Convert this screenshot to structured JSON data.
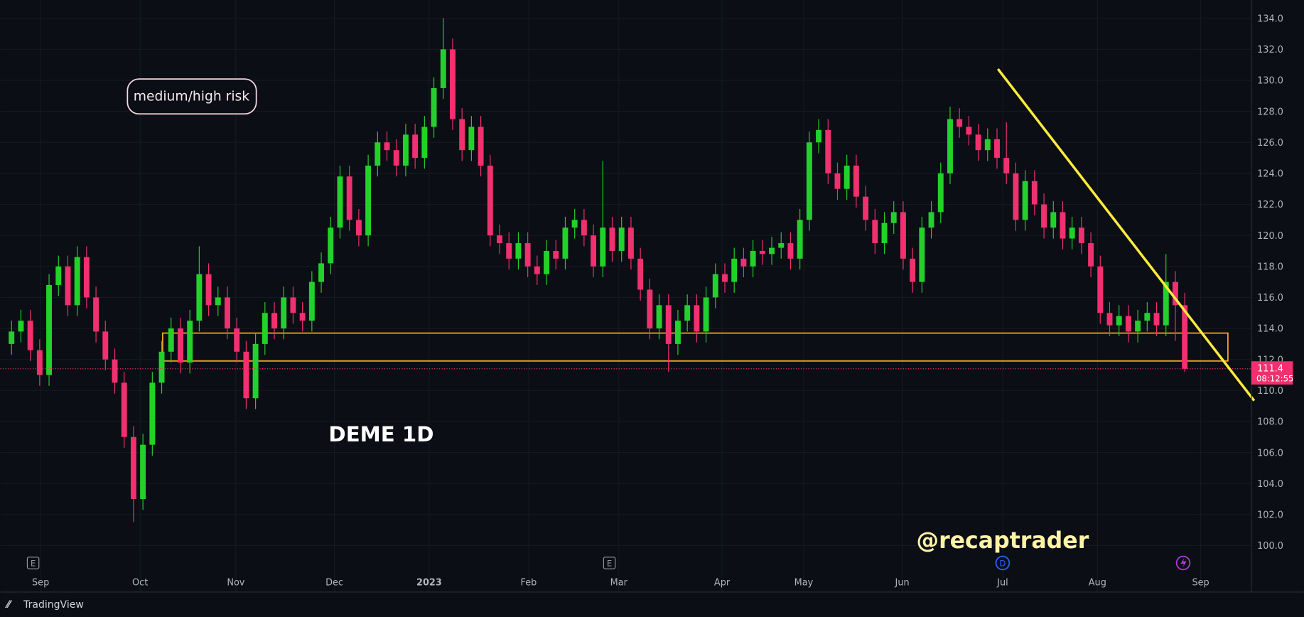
{
  "chart_data": {
    "type": "candlestick",
    "title": "DEME 1D",
    "annotations": [
      "medium/high risk",
      "@recaptrader"
    ],
    "brand": "TradingView",
    "up_color": "#22d12a",
    "down_color": "#f0306f",
    "grid": true,
    "x": [
      0,
      1,
      2,
      3,
      4,
      5,
      6,
      7,
      8,
      9,
      10,
      11,
      12,
      13,
      14,
      15,
      16,
      17,
      18,
      19,
      20,
      21,
      22,
      23,
      24,
      25,
      26,
      27,
      28,
      29,
      30,
      31,
      32,
      33,
      34,
      35,
      36,
      37,
      38,
      39,
      40,
      41,
      42,
      43,
      44,
      45,
      46,
      47,
      48,
      49,
      50,
      51,
      52,
      53,
      54,
      55,
      56,
      57,
      58,
      59,
      60,
      61,
      62,
      63,
      64,
      65,
      66,
      67,
      68,
      69,
      70,
      71,
      72,
      73,
      74,
      75,
      76,
      77,
      78,
      79,
      80,
      81,
      82,
      83,
      84,
      85,
      86,
      87,
      88,
      89,
      90,
      91,
      92,
      93,
      94,
      95,
      96,
      97,
      98,
      99,
      100,
      101,
      102,
      103,
      104,
      105,
      106,
      107,
      108,
      109,
      110,
      111,
      112,
      113,
      114,
      115,
      116,
      117,
      118,
      119,
      120,
      121,
      122,
      123,
      124,
      125
    ],
    "open": [
      113.0,
      113.8,
      114.5,
      112.6,
      111.0,
      116.8,
      118.0,
      115.5,
      118.6,
      116.0,
      113.8,
      112.0,
      110.5,
      107.0,
      103.0,
      106.5,
      110.5,
      112.5,
      114.0,
      111.8,
      114.5,
      117.5,
      115.5,
      116.0,
      114.0,
      112.5,
      109.5,
      113.0,
      115.0,
      114.0,
      116.0,
      115.0,
      114.5,
      117.0,
      118.2,
      120.5,
      123.8,
      121.0,
      120.0,
      124.5,
      126.0,
      125.5,
      124.5,
      126.5,
      125.0,
      127.0,
      129.5,
      132.0,
      127.5,
      125.5,
      127.0,
      124.5,
      120.0,
      119.5,
      118.5,
      119.5,
      118.0,
      117.5,
      119.0,
      118.5,
      120.5,
      121.0,
      120.0,
      118.0,
      120.5,
      119.0,
      120.5,
      118.5,
      116.5,
      114.0,
      115.5,
      113.0,
      114.5,
      115.5,
      113.8,
      116.0,
      117.5,
      117.0,
      118.5,
      118.0,
      119.0,
      118.8,
      119.2,
      119.5,
      118.5,
      121.0,
      126.0,
      126.8,
      124.0,
      123.0,
      124.5,
      122.5,
      121.0,
      119.5,
      120.8,
      121.5,
      118.5,
      117.0,
      120.5,
      121.5,
      124.0,
      127.5,
      127.0,
      126.5,
      125.5,
      126.2,
      125.0,
      124.0,
      121.0,
      123.5,
      122.0,
      120.5,
      121.5,
      119.8,
      120.5,
      119.5,
      118.0,
      115.0,
      114.2,
      114.8,
      113.8,
      114.5,
      115.0,
      114.2,
      117.0,
      115.5
    ],
    "high": [
      114.5,
      115.2,
      115.2,
      113.3,
      117.5,
      118.7,
      118.7,
      119.3,
      119.3,
      116.7,
      114.5,
      112.7,
      111.2,
      107.7,
      107.2,
      111.2,
      113.2,
      114.7,
      114.7,
      115.2,
      119.3,
      118.2,
      116.7,
      116.7,
      114.7,
      113.2,
      113.7,
      115.7,
      115.7,
      116.7,
      116.7,
      115.7,
      117.7,
      118.9,
      121.2,
      124.5,
      124.5,
      121.7,
      125.2,
      126.7,
      126.7,
      126.2,
      127.2,
      127.2,
      127.7,
      130.2,
      134.0,
      132.7,
      128.2,
      127.7,
      127.7,
      125.2,
      120.7,
      120.2,
      120.2,
      120.2,
      118.7,
      119.7,
      119.7,
      121.2,
      121.7,
      121.7,
      120.7,
      124.8,
      121.2,
      121.2,
      121.2,
      119.2,
      117.2,
      116.2,
      116.2,
      115.2,
      116.2,
      116.2,
      116.7,
      118.2,
      118.2,
      119.2,
      119.2,
      119.7,
      119.7,
      119.9,
      120.2,
      120.2,
      121.7,
      126.7,
      127.5,
      127.5,
      124.7,
      125.2,
      125.2,
      123.2,
      121.7,
      121.5,
      122.2,
      122.2,
      119.2,
      121.2,
      122.2,
      124.7,
      128.3,
      128.2,
      127.7,
      127.2,
      126.9,
      126.9,
      127.3,
      124.7,
      124.2,
      124.2,
      122.7,
      122.2,
      122.2,
      121.2,
      121.2,
      120.2,
      118.7,
      115.7,
      115.5,
      115.5,
      115.2,
      115.7,
      115.7,
      118.8,
      117.7,
      116.3
    ],
    "low": [
      112.3,
      113.1,
      111.9,
      110.3,
      110.3,
      116.1,
      114.8,
      114.8,
      115.3,
      113.1,
      111.3,
      109.8,
      106.3,
      101.5,
      102.3,
      105.8,
      109.8,
      111.8,
      111.1,
      111.1,
      113.8,
      114.8,
      114.8,
      113.3,
      111.8,
      108.8,
      108.8,
      112.3,
      113.3,
      113.3,
      114.3,
      113.8,
      113.8,
      116.3,
      117.5,
      119.8,
      120.3,
      119.3,
      119.3,
      123.8,
      124.8,
      123.8,
      123.8,
      124.3,
      124.3,
      126.3,
      128.8,
      126.8,
      124.8,
      124.8,
      123.8,
      119.3,
      118.8,
      117.8,
      117.8,
      117.3,
      116.8,
      116.8,
      117.8,
      117.8,
      119.8,
      119.3,
      117.3,
      117.3,
      118.3,
      118.3,
      117.8,
      115.8,
      113.3,
      113.3,
      111.2,
      112.3,
      113.8,
      113.1,
      113.1,
      115.3,
      116.3,
      116.3,
      117.3,
      117.3,
      118.1,
      118.1,
      118.5,
      117.8,
      117.8,
      120.3,
      125.3,
      123.3,
      122.3,
      122.3,
      121.8,
      120.3,
      118.8,
      118.8,
      120.1,
      117.8,
      116.3,
      116.3,
      119.8,
      120.8,
      123.3,
      126.3,
      125.8,
      124.8,
      124.8,
      124.3,
      123.3,
      120.3,
      120.3,
      121.3,
      119.8,
      119.8,
      119.1,
      119.1,
      118.8,
      117.3,
      114.3,
      113.5,
      113.5,
      113.1,
      113.1,
      113.8,
      113.5,
      113.5,
      113.2,
      111.2
    ],
    "close": [
      113.8,
      114.5,
      112.6,
      111.0,
      116.8,
      118.0,
      115.5,
      118.6,
      116.0,
      113.8,
      112.0,
      110.5,
      107.0,
      103.0,
      106.5,
      110.5,
      112.5,
      114.0,
      111.8,
      114.5,
      117.5,
      115.5,
      116.0,
      114.0,
      112.5,
      109.5,
      113.0,
      115.0,
      114.0,
      116.0,
      115.0,
      114.5,
      117.0,
      118.2,
      120.5,
      123.8,
      121.0,
      120.0,
      124.5,
      126.0,
      125.5,
      124.5,
      126.5,
      125.0,
      127.0,
      129.5,
      132.0,
      127.5,
      125.5,
      127.0,
      124.5,
      120.0,
      119.5,
      118.5,
      119.5,
      118.0,
      117.5,
      119.0,
      118.5,
      120.5,
      121.0,
      120.0,
      118.0,
      120.5,
      119.0,
      120.5,
      118.5,
      116.5,
      114.0,
      115.5,
      113.0,
      114.5,
      115.5,
      113.8,
      116.0,
      117.5,
      117.0,
      118.5,
      118.0,
      119.0,
      118.8,
      119.2,
      119.5,
      118.5,
      121.0,
      126.0,
      126.8,
      124.0,
      123.0,
      124.5,
      122.5,
      121.0,
      119.5,
      120.8,
      121.5,
      118.5,
      117.0,
      120.5,
      121.5,
      124.0,
      127.5,
      127.0,
      126.5,
      125.5,
      126.2,
      125.0,
      124.0,
      121.0,
      123.5,
      122.0,
      120.5,
      121.5,
      119.8,
      120.5,
      119.5,
      118.0,
      115.0,
      114.2,
      114.8,
      113.8,
      114.5,
      115.0,
      114.2,
      117.0,
      115.5,
      111.4
    ],
    "xlim": [
      -1.2,
      132.1
    ],
    "xticks": [
      {
        "value": 3.1,
        "label": "Sep"
      },
      {
        "value": 13.7,
        "label": "Oct"
      },
      {
        "value": 23.9,
        "label": "Nov"
      },
      {
        "value": 34.4,
        "label": "Dec"
      },
      {
        "value": 44.5,
        "label": "2023"
      },
      {
        "value": 55.1,
        "label": "Feb"
      },
      {
        "value": 64.7,
        "label": "Mar"
      },
      {
        "value": 75.7,
        "label": "Apr"
      },
      {
        "value": 84.4,
        "label": "May"
      },
      {
        "value": 94.9,
        "label": "Jun"
      },
      {
        "value": 105.6,
        "label": "Jul"
      },
      {
        "value": 115.7,
        "label": "Aug"
      },
      {
        "value": 126.7,
        "label": "Sep"
      }
    ],
    "ylim": [
      98.18,
      135.18
    ],
    "yticks": [
      {
        "value": 100,
        "label": "100.0"
      },
      {
        "value": 102,
        "label": "102.0"
      },
      {
        "value": 104,
        "label": "104.0"
      },
      {
        "value": 106,
        "label": "106.0"
      },
      {
        "value": 108,
        "label": "108.0"
      },
      {
        "value": 110,
        "label": "110.0"
      },
      {
        "value": 112,
        "label": "112.0"
      },
      {
        "value": 114,
        "label": "114.0"
      },
      {
        "value": 116,
        "label": "116.0"
      },
      {
        "value": 118,
        "label": "118.0"
      },
      {
        "value": 120,
        "label": "120.0"
      },
      {
        "value": 122,
        "label": "122.0"
      },
      {
        "value": 124,
        "label": "124.0"
      },
      {
        "value": 126,
        "label": "126.0"
      },
      {
        "value": 128,
        "label": "128.0"
      },
      {
        "value": 130,
        "label": "130.0"
      },
      {
        "value": 132,
        "label": "132.0"
      },
      {
        "value": 134,
        "label": "134.0"
      }
    ],
    "last_price": 111.4,
    "countdown": "08:12:55",
    "zone": {
      "x": [
        16.1,
        129.6
      ],
      "y": [
        111.9,
        113.7
      ],
      "color": "#f5a623"
    },
    "trendline": {
      "x": [
        105.1,
        132.4
      ],
      "y": [
        130.73,
        109.34
      ],
      "color": "#ffeb3b"
    },
    "events": [
      {
        "x": 2.3,
        "label": "E"
      },
      {
        "x": 63.7,
        "label": "E"
      },
      {
        "x": 105.6,
        "label": "D"
      }
    ]
  }
}
